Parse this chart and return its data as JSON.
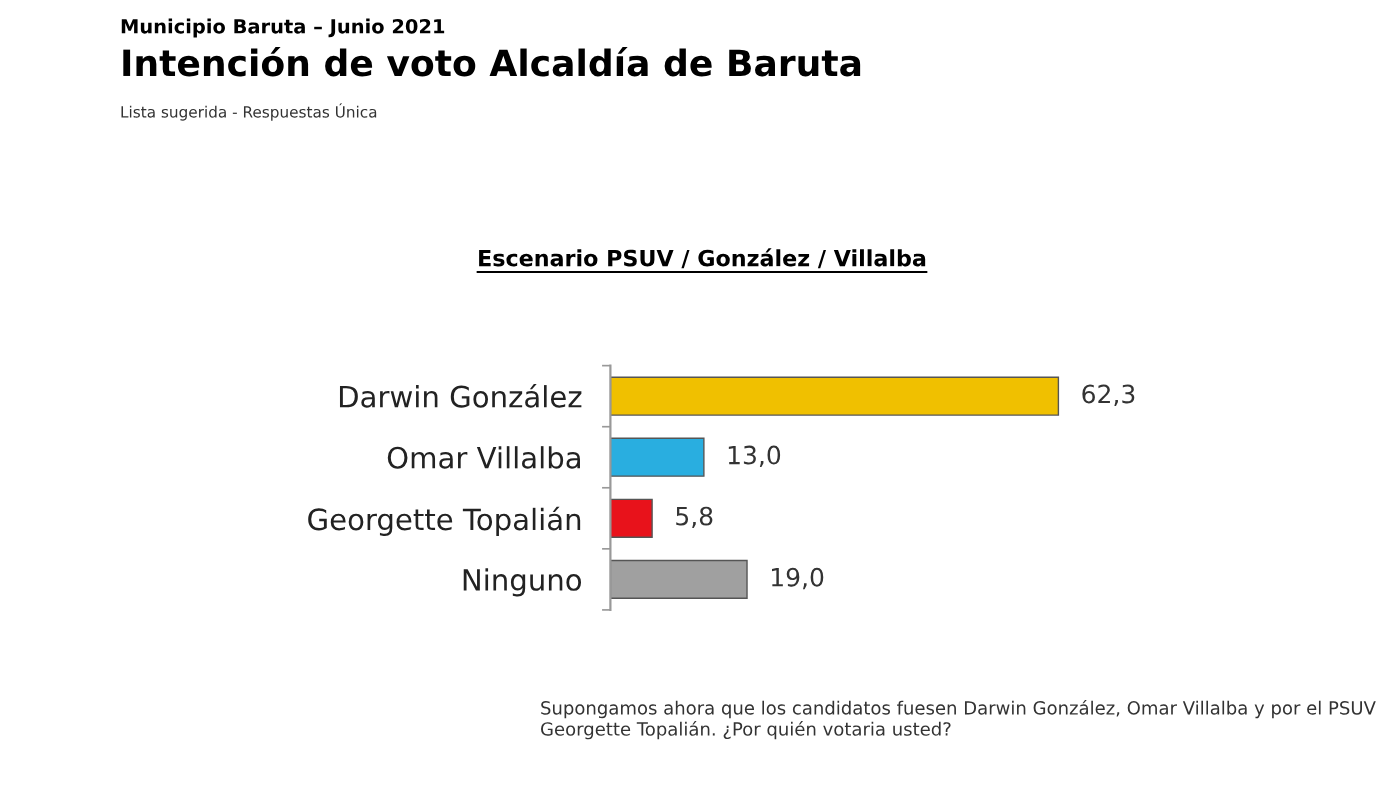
{
  "chart_data": {
    "type": "bar",
    "orientation": "horizontal",
    "title": "Intención de voto Alcaldía de Baruta",
    "subtitle": "Municipio Baruta – Junio 2021",
    "annotations": [
      "Lista sugerida - Respuestas Única",
      "Escenario PSUV / González / Villalba",
      "Supongamos ahora que los candidatos fuesen Darwin González, Omar Villalba y por el PSUV Georgette Topalián. ¿Por quién votaria usted?"
    ],
    "categories": [
      "Darwin González",
      "Omar Villalba",
      "Georgette Topalián",
      "Ninguno"
    ],
    "values": [
      62.3,
      13.0,
      5.8,
      19.0
    ],
    "colors": [
      "#f0c000",
      "#29aee0",
      "#e8121b",
      "#a0a0a0"
    ],
    "value_labels": [
      "62,3",
      "13,0",
      "5,8",
      "19,0"
    ],
    "grid": false,
    "legend": false
  }
}
